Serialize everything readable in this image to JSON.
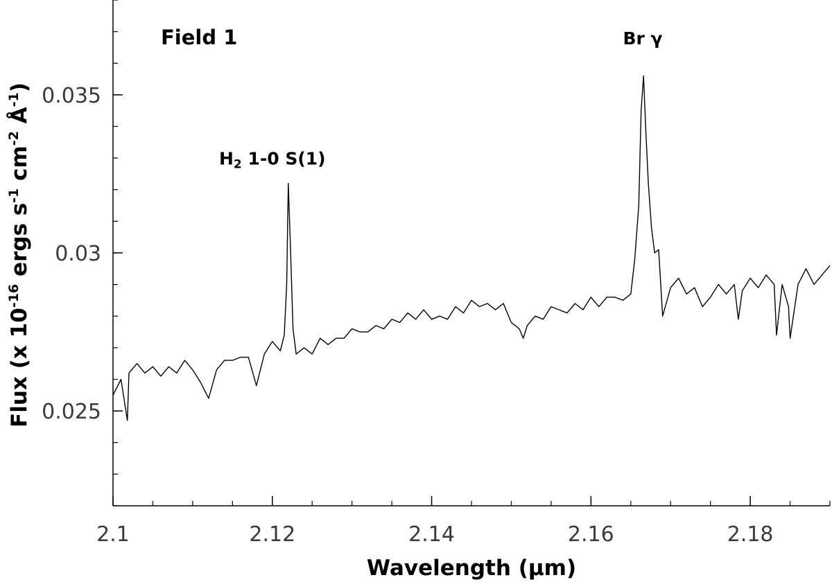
{
  "chart_data": {
    "type": "line",
    "title": "",
    "panel_label": "Field 1",
    "xlabel": "Wavelength (μm)",
    "ylabel": {
      "prefix": "Flux (x 10",
      "exp1": "-16",
      "mid1": " ergs s",
      "exp2": "-1",
      "mid2": " cm",
      "exp3": "-2",
      "mid3": " Å",
      "exp4": "-1",
      "suffix": ")"
    },
    "xlim": [
      2.1,
      2.19
    ],
    "ylim": [
      0.022,
      0.038
    ],
    "x_ticks": [
      2.1,
      2.12,
      2.14,
      2.16,
      2.18
    ],
    "x_tick_labels": [
      "2.1",
      "2.12",
      "2.14",
      "2.16",
      "2.18"
    ],
    "y_ticks": [
      0.025,
      0.03,
      0.035
    ],
    "y_tick_labels": [
      "0.025",
      "0.03",
      "0.035"
    ],
    "grid": false,
    "line_color": "#000000",
    "annotations": [
      {
        "name": "h2-line-label",
        "base": "H",
        "sub": "2",
        "rest": " 1-0 S(1)",
        "x": 2.12,
        "y": 0.0328
      },
      {
        "name": "br-gamma-label",
        "base": "Br γ",
        "sub": "",
        "rest": "",
        "x": 2.1665,
        "y": 0.0366
      }
    ],
    "series": [
      {
        "x": [
          2.1,
          2.101,
          2.1018,
          2.102,
          2.103,
          2.104,
          2.105,
          2.106,
          2.107,
          2.108,
          2.109,
          2.11,
          2.111,
          2.112,
          2.113,
          2.114,
          2.115,
          2.116,
          2.117,
          2.118,
          2.119,
          2.12,
          2.121,
          2.1215,
          2.1218,
          2.122,
          2.1223,
          2.1226,
          2.123,
          2.124,
          2.125,
          2.126,
          2.127,
          2.128,
          2.129,
          2.13,
          2.131,
          2.132,
          2.133,
          2.134,
          2.135,
          2.136,
          2.137,
          2.138,
          2.139,
          2.14,
          2.141,
          2.142,
          2.143,
          2.144,
          2.145,
          2.146,
          2.147,
          2.148,
          2.149,
          2.15,
          2.151,
          2.1515,
          2.152,
          2.153,
          2.154,
          2.155,
          2.156,
          2.157,
          2.158,
          2.159,
          2.16,
          2.161,
          2.162,
          2.163,
          2.164,
          2.165,
          2.1655,
          2.166,
          2.1663,
          2.1666,
          2.1669,
          2.1672,
          2.1676,
          2.168,
          2.1685,
          2.169,
          2.17,
          2.171,
          2.172,
          2.173,
          2.174,
          2.175,
          2.176,
          2.177,
          2.178,
          2.1785,
          2.179,
          2.18,
          2.181,
          2.182,
          2.183,
          2.1833,
          2.184,
          2.1848,
          2.185,
          2.186,
          2.187,
          2.188,
          2.189,
          2.19
        ],
        "y": [
          0.0255,
          0.026,
          0.0247,
          0.0262,
          0.0265,
          0.0262,
          0.0264,
          0.0261,
          0.0264,
          0.0262,
          0.0266,
          0.0263,
          0.0259,
          0.0254,
          0.0263,
          0.0266,
          0.0266,
          0.0267,
          0.0267,
          0.0258,
          0.0268,
          0.0272,
          0.0269,
          0.0274,
          0.029,
          0.0322,
          0.03,
          0.0276,
          0.0268,
          0.027,
          0.0268,
          0.0273,
          0.0271,
          0.0273,
          0.0273,
          0.0276,
          0.0275,
          0.0275,
          0.0277,
          0.0276,
          0.0279,
          0.0278,
          0.0281,
          0.0279,
          0.0282,
          0.0279,
          0.028,
          0.0279,
          0.0283,
          0.0281,
          0.0285,
          0.0283,
          0.0284,
          0.0282,
          0.0284,
          0.0278,
          0.0276,
          0.0273,
          0.0277,
          0.028,
          0.0279,
          0.0283,
          0.0282,
          0.0281,
          0.0284,
          0.0282,
          0.0286,
          0.0283,
          0.0286,
          0.0286,
          0.0285,
          0.0287,
          0.0298,
          0.0315,
          0.0345,
          0.0356,
          0.0338,
          0.0322,
          0.0308,
          0.03,
          0.0301,
          0.028,
          0.0289,
          0.0292,
          0.0287,
          0.0289,
          0.0283,
          0.0286,
          0.029,
          0.0287,
          0.029,
          0.0279,
          0.0288,
          0.0292,
          0.0289,
          0.0293,
          0.029,
          0.0274,
          0.029,
          0.0283,
          0.0273,
          0.029,
          0.0295,
          0.029,
          0.0293,
          0.0296
        ]
      }
    ]
  }
}
